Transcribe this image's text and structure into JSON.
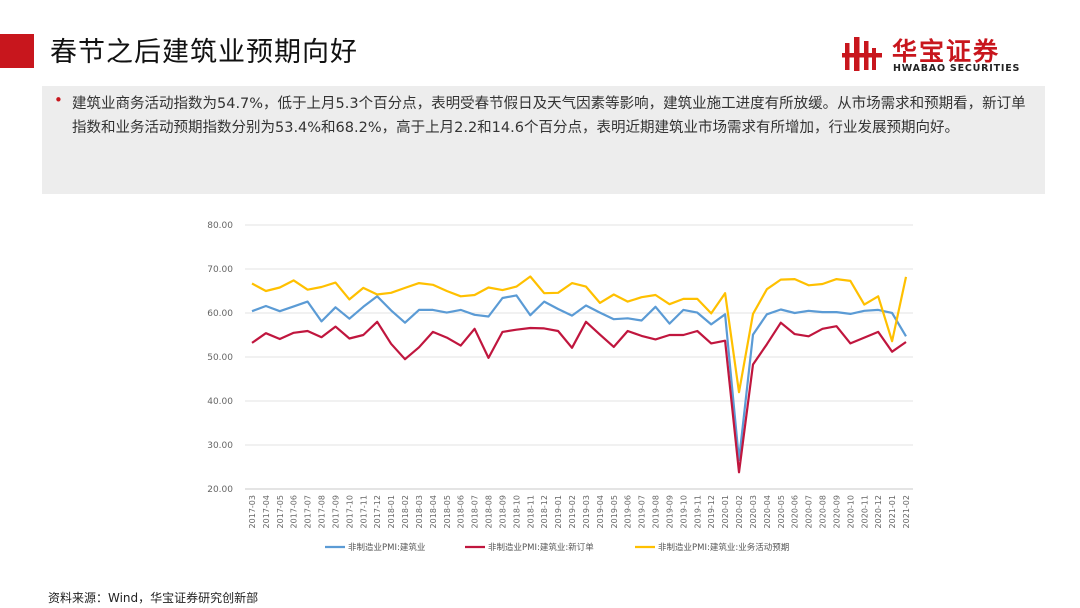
{
  "header": {
    "title": "春节之后建筑业预期向好",
    "logo_cn": "华宝证券",
    "logo_en": "HWABAO SECURITIES"
  },
  "summary": {
    "bullet": "•",
    "text": "建筑业商务活动指数为54.7%，低于上月5.3个百分点，表明受春节假日及天气因素等影响，建筑业施工进度有所放缓。从市场需求和预期看，新订单指数和业务活动预期指数分别为53.4%和68.2%，高于上月2.2和14.6个百分点，表明近期建筑业市场需求有所增加，行业发展预期向好。"
  },
  "source": "资料来源：Wind，华宝证券研究创新部",
  "colors": {
    "accent": "#c8161d",
    "series_blue": "#5b9bd5",
    "series_red": "#c0163e",
    "series_yellow": "#ffc000"
  },
  "chart_data": {
    "type": "line",
    "title": "",
    "xlabel": "",
    "ylabel": "",
    "ylim": [
      20,
      80
    ],
    "yticks": [
      "20.00",
      "30.00",
      "40.00",
      "50.00",
      "60.00",
      "70.00",
      "80.00"
    ],
    "grid": true,
    "legend_position": "bottom",
    "categories": [
      "2017-03",
      "2017-04",
      "2017-05",
      "2017-06",
      "2017-07",
      "2017-08",
      "2017-09",
      "2017-10",
      "2017-11",
      "2017-12",
      "2018-01",
      "2018-02",
      "2018-03",
      "2018-04",
      "2018-05",
      "2018-06",
      "2018-07",
      "2018-08",
      "2018-09",
      "2018-10",
      "2018-11",
      "2018-12",
      "2019-01",
      "2019-02",
      "2019-03",
      "2019-04",
      "2019-05",
      "2019-06",
      "2019-07",
      "2019-08",
      "2019-09",
      "2019-10",
      "2019-11",
      "2019-12",
      "2020-01",
      "2020-02",
      "2020-03",
      "2020-04",
      "2020-05",
      "2020-06",
      "2020-07",
      "2020-08",
      "2020-09",
      "2020-10",
      "2020-11",
      "2020-12",
      "2021-01",
      "2021-02"
    ],
    "series": [
      {
        "name": "非制造业PMI:建筑业",
        "color": "#5b9bd5",
        "values": [
          60.4,
          61.6,
          60.4,
          61.5,
          62.6,
          58.1,
          61.3,
          58.7,
          61.4,
          63.8,
          60.6,
          57.8,
          60.7,
          60.7,
          60.1,
          60.7,
          59.6,
          59.2,
          63.4,
          64.0,
          59.5,
          62.6,
          60.9,
          59.4,
          61.7,
          60.1,
          58.6,
          58.8,
          58.3,
          61.4,
          57.6,
          60.7,
          60.1,
          57.4,
          59.7,
          26.6,
          55.1,
          59.7,
          60.8,
          60.0,
          60.5,
          60.2,
          60.2,
          59.8,
          60.5,
          60.7,
          60.0,
          54.7
        ]
      },
      {
        "name": "非制造业PMI:建筑业:新订单",
        "color": "#c0163e",
        "values": [
          53.2,
          55.4,
          54.1,
          55.5,
          55.9,
          54.5,
          56.9,
          54.2,
          55.0,
          58.0,
          53.0,
          49.5,
          52.2,
          55.7,
          54.4,
          52.6,
          56.4,
          49.8,
          55.7,
          56.2,
          56.6,
          56.5,
          55.9,
          52.1,
          58.0,
          55.1,
          52.3,
          55.9,
          54.8,
          54.0,
          55.0,
          55.0,
          55.9,
          53.1,
          53.7,
          23.8,
          48.3,
          52.9,
          57.8,
          55.2,
          54.7,
          56.4,
          57.0,
          53.1,
          54.4,
          55.7,
          51.2,
          53.4
        ]
      },
      {
        "name": "非制造业PMI:建筑业:业务活动预期",
        "color": "#ffc000",
        "values": [
          66.7,
          65.0,
          65.8,
          67.4,
          65.3,
          65.9,
          66.9,
          63.1,
          65.7,
          64.2,
          64.6,
          65.7,
          66.8,
          66.4,
          65.0,
          63.8,
          64.1,
          65.8,
          65.2,
          66.0,
          68.3,
          64.5,
          64.6,
          66.8,
          66.0,
          62.3,
          64.2,
          62.6,
          63.6,
          64.1,
          62.0,
          63.2,
          63.2,
          59.9,
          64.5,
          42.0,
          59.8,
          65.4,
          67.6,
          67.7,
          66.3,
          66.6,
          67.7,
          67.3,
          61.9,
          63.8,
          53.6,
          68.2
        ]
      }
    ]
  }
}
